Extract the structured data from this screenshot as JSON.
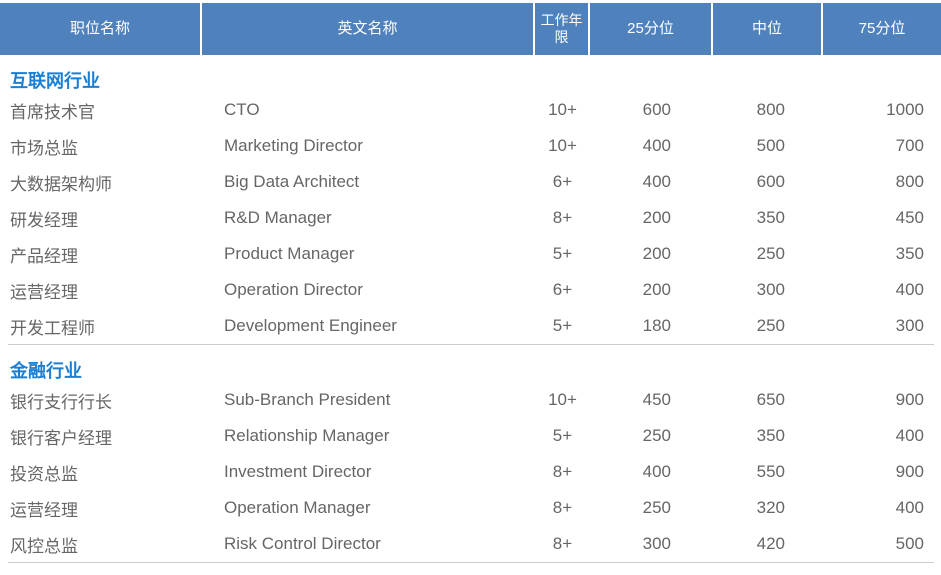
{
  "table": {
    "title": "salary-table",
    "columns": [
      {
        "label": "职位名称"
      },
      {
        "label": "英文名称"
      },
      {
        "label": "工作年限"
      },
      {
        "label": "25分位"
      },
      {
        "label": "中位"
      },
      {
        "label": "75分位"
      }
    ],
    "header_bg_color": "#4f81bd",
    "section_label_color": "#1b7fd4",
    "body_text_color": "#666666",
    "sections": [
      {
        "name": "互联网行业",
        "rows": [
          {
            "cn": "首席技术官",
            "en": "CTO",
            "years": "10+",
            "p25": "600",
            "median": "800",
            "p75": "1000"
          },
          {
            "cn": "市场总监",
            "en": "Marketing Director",
            "years": "10+",
            "p25": "400",
            "median": "500",
            "p75": "700"
          },
          {
            "cn": "大数据架构师",
            "en": "Big Data Architect",
            "years": "6+",
            "p25": "400",
            "median": "600",
            "p75": "800"
          },
          {
            "cn": "研发经理",
            "en": "R&D Manager",
            "years": "8+",
            "p25": "200",
            "median": "350",
            "p75": "450"
          },
          {
            "cn": "产品经理",
            "en": "Product Manager",
            "years": "5+",
            "p25": "200",
            "median": "250",
            "p75": "350"
          },
          {
            "cn": "运营经理",
            "en": "Operation Director",
            "years": "6+",
            "p25": "200",
            "median": "300",
            "p75": "400"
          },
          {
            "cn": "开发工程师",
            "en": "Development Engineer",
            "years": "5+",
            "p25": "180",
            "median": "250",
            "p75": "300"
          }
        ]
      },
      {
        "name": "金融行业",
        "rows": [
          {
            "cn": "银行支行行长",
            "en": "Sub-Branch President",
            "years": "10+",
            "p25": "450",
            "median": "650",
            "p75": "900"
          },
          {
            "cn": "银行客户经理",
            "en": "Relationship Manager",
            "years": "5+",
            "p25": "250",
            "median": "350",
            "p75": "400"
          },
          {
            "cn": "投资总监",
            "en": "Investment Director",
            "years": "8+",
            "p25": "400",
            "median": "550",
            "p75": "900"
          },
          {
            "cn": "运营经理",
            "en": "Operation Manager",
            "years": "8+",
            "p25": "250",
            "median": "320",
            "p75": "400"
          },
          {
            "cn": "风控总监",
            "en": "Risk Control Director",
            "years": "8+",
            "p25": "300",
            "median": "420",
            "p75": "500"
          }
        ]
      }
    ]
  }
}
